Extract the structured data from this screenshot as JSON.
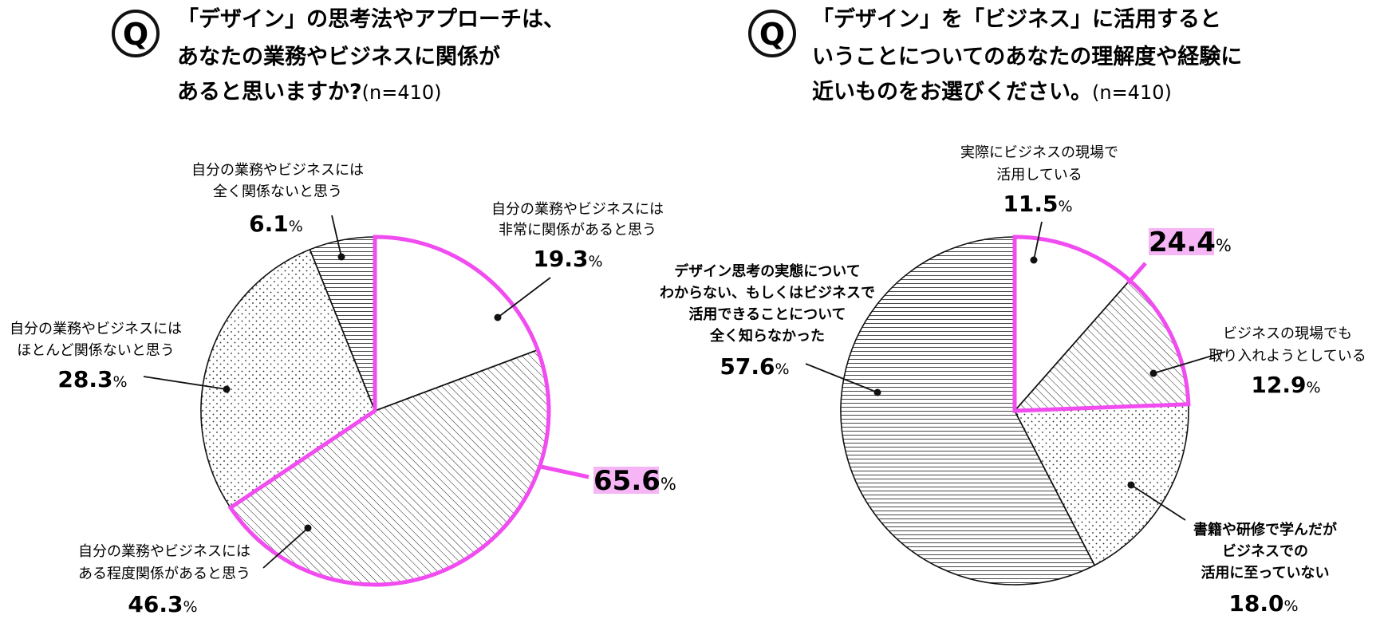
{
  "colors": {
    "highlight": "#f04cf0",
    "highlight_fill": "#f6b6f6",
    "stroke": "#111111",
    "background": "#ffffff"
  },
  "q_icon": {
    "label": "Q"
  },
  "percent_sign": "%",
  "chart_data": [
    {
      "type": "pie",
      "title_lines": [
        "「デザイン」の思考法やアプローチは、",
        "あなたの業務やビジネスに関係が",
        "あると思いますか?"
      ],
      "n_label": "(n=410)",
      "slices": [
        {
          "label_lines": [
            "自分の業務やビジネスには",
            "非常に関係があると思う"
          ],
          "value": 19.3,
          "value_text": "19.3",
          "pattern": "blank"
        },
        {
          "label_lines": [
            "自分の業務やビジネスには",
            "ある程度関係があると思う"
          ],
          "value": 46.3,
          "value_text": "46.3",
          "pattern": "diagonal"
        },
        {
          "label_lines": [
            "自分の業務やビジネスには",
            "ほとんど関係ないと思う"
          ],
          "value": 28.3,
          "value_text": "28.3",
          "pattern": "dots"
        },
        {
          "label_lines": [
            "自分の業務やビジネスには",
            "全く関係ないと思う"
          ],
          "value": 6.1,
          "value_text": "6.1",
          "pattern": "horizontal"
        }
      ],
      "highlight": {
        "value": 65.6,
        "value_text": "65.6",
        "slice_indices": [
          0,
          1
        ]
      }
    },
    {
      "type": "pie",
      "title_lines": [
        "「デザイン」を「ビジネス」に活用すると",
        "いうことについてのあなたの理解度や経験に",
        "近いものをお選びください。"
      ],
      "n_label": "(n=410)",
      "slices": [
        {
          "label_lines": [
            "実際にビジネスの現場で",
            "活用している"
          ],
          "value": 11.5,
          "value_text": "11.5",
          "pattern": "blank"
        },
        {
          "label_lines": [
            "ビジネスの現場でも",
            "取り入れようとしている"
          ],
          "value": 12.9,
          "value_text": "12.9",
          "pattern": "diagonal"
        },
        {
          "label_lines": [
            "書籍や研修で学んだが",
            "ビジネスでの",
            "活用に至っていない"
          ],
          "value": 18.0,
          "value_text": "18.0",
          "pattern": "dots"
        },
        {
          "label_lines": [
            "デザイン思考の実態について",
            "わからない、もしくはビジネスで",
            "活用できることについて",
            "全く知らなかった"
          ],
          "value": 57.6,
          "value_text": "57.6",
          "pattern": "horizontal"
        }
      ],
      "highlight": {
        "value": 24.4,
        "value_text": "24.4",
        "slice_indices": [
          0,
          1
        ]
      }
    }
  ]
}
